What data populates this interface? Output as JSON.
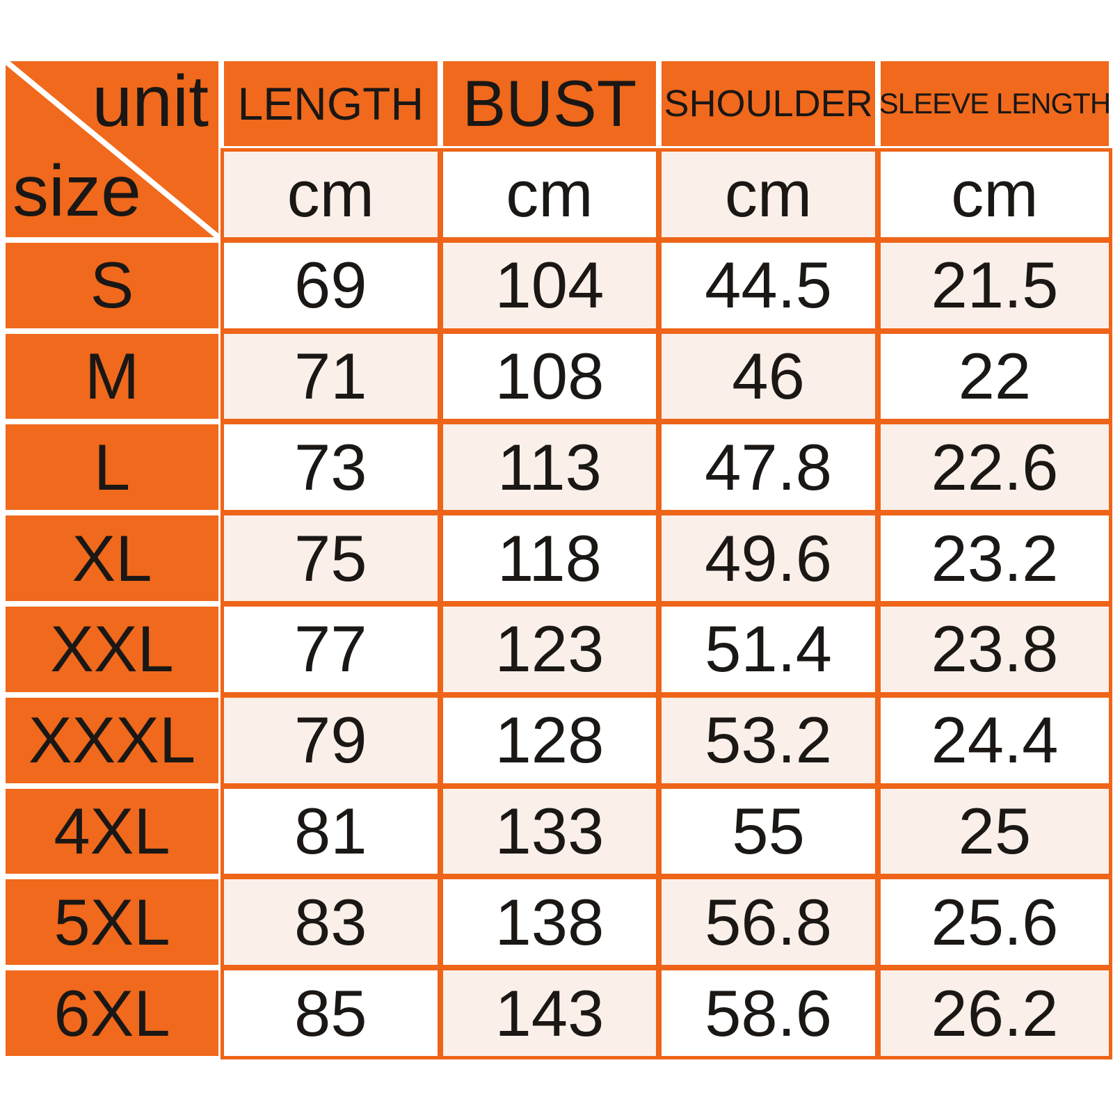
{
  "table": {
    "corner": {
      "top_label": "unit",
      "bottom_label": "size"
    },
    "columns": [
      "LENGTH",
      "BUST",
      "SHOULDER",
      "SLEEVE LENGTH"
    ],
    "unit_row": [
      "cm",
      "cm",
      "cm",
      "cm"
    ],
    "rows": [
      {
        "size": "S",
        "values": [
          "69",
          "104",
          "44.5",
          "21.5"
        ]
      },
      {
        "size": "M",
        "values": [
          "71",
          "108",
          "46",
          "22"
        ]
      },
      {
        "size": "L",
        "values": [
          "73",
          "113",
          "47.8",
          "22.6"
        ]
      },
      {
        "size": "XL",
        "values": [
          "75",
          "118",
          "49.6",
          "23.2"
        ]
      },
      {
        "size": "XXL",
        "values": [
          "77",
          "123",
          "51.4",
          "23.8"
        ]
      },
      {
        "size": "XXXL",
        "values": [
          "79",
          "128",
          "53.2",
          "24.4"
        ]
      },
      {
        "size": "4XL",
        "values": [
          "81",
          "133",
          "55",
          "25"
        ]
      },
      {
        "size": "5XL",
        "values": [
          "83",
          "138",
          "56.8",
          "25.6"
        ]
      },
      {
        "size": "6XL",
        "values": [
          "85",
          "143",
          "58.6",
          "26.2"
        ]
      }
    ]
  },
  "chart_data": {
    "type": "table",
    "title": "Garment size chart",
    "corner_labels": {
      "top_right": "unit",
      "bottom_left": "size"
    },
    "columns": [
      "LENGTH",
      "BUST",
      "SHOULDER",
      "SLEEVE LENGTH"
    ],
    "units": [
      "cm",
      "cm",
      "cm",
      "cm"
    ],
    "categories": [
      "S",
      "M",
      "L",
      "XL",
      "XXL",
      "XXXL",
      "4XL",
      "5XL",
      "6XL"
    ],
    "series": [
      {
        "name": "LENGTH",
        "values": [
          69,
          71,
          73,
          75,
          77,
          79,
          81,
          83,
          85
        ]
      },
      {
        "name": "BUST",
        "values": [
          104,
          108,
          113,
          118,
          123,
          128,
          133,
          138,
          143
        ]
      },
      {
        "name": "SHOULDER",
        "values": [
          44.5,
          46,
          47.8,
          49.6,
          51.4,
          53.2,
          55,
          56.8,
          58.6
        ]
      },
      {
        "name": "SLEEVE LENGTH",
        "values": [
          21.5,
          22,
          22.6,
          23.2,
          23.8,
          24.4,
          25,
          25.6,
          26.2
        ]
      }
    ],
    "layout": {
      "grid": true,
      "checkerboard_cells": true,
      "header_position": "top-and-left"
    }
  },
  "colors": {
    "orange": "#F0691C",
    "border_orange": "#EE6418",
    "cell_pink": "#FAF0E9",
    "cell_white": "#FFFFFF",
    "text": "#1A1715",
    "divider_white": "#FFFFFF"
  }
}
